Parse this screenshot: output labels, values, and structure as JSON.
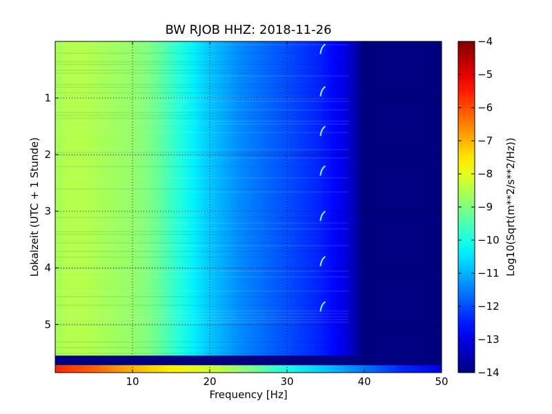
{
  "chart_data": {
    "type": "heatmap",
    "title": "BW RJOB HHZ: 2018-11-26",
    "xlabel": "Frequency [Hz]",
    "ylabel": "Lokalzeit (UTC + 1 Stunde)",
    "xlim": [
      0,
      50
    ],
    "ylim": [
      0,
      5.85
    ],
    "y_inverted": true,
    "x_ticks": [
      10,
      20,
      30,
      40,
      50
    ],
    "y_ticks": [
      1,
      2,
      3,
      4,
      5
    ],
    "grid": true,
    "colormap": "jet",
    "colorbar": {
      "label": "Log10(Sqrt(m**2/s**2/Hz))",
      "range": [
        -14,
        -4
      ],
      "ticks": [
        -14,
        -13,
        -12,
        -11,
        -10,
        -9,
        -8,
        -7,
        -6,
        -5,
        -4
      ]
    },
    "value_profile_by_frequency": {
      "frequency_hz": [
        0,
        2,
        4,
        6,
        8,
        10,
        12,
        14,
        16,
        18,
        20,
        22,
        24,
        26,
        28,
        30,
        32,
        34,
        36,
        37,
        38,
        39,
        40,
        41,
        45,
        50
      ],
      "log10_amplitude": [
        -8.6,
        -8.5,
        -8.5,
        -8.6,
        -8.7,
        -8.8,
        -9.0,
        -9.4,
        -9.9,
        -10.4,
        -10.8,
        -11.1,
        -11.4,
        -11.6,
        -11.8,
        -12.0,
        -12.2,
        -12.4,
        -12.7,
        -12.9,
        -13.2,
        -13.6,
        -14.0,
        -14.0,
        -14.0,
        -14.0
      ]
    },
    "gap_band": {
      "time_start": 5.55,
      "time_end": 5.72,
      "value": -14.0
    },
    "final_row_profile": {
      "time_start": 5.72,
      "time_end": 5.85,
      "frequency_hz": [
        0,
        5,
        10,
        15,
        20,
        25,
        30,
        35,
        40,
        45,
        50
      ],
      "log10_amplitude": [
        -5.6,
        -6.2,
        -7.0,
        -7.6,
        -8.2,
        -9.0,
        -10.0,
        -10.8,
        -11.6,
        -12.4,
        -13.0
      ]
    },
    "features": [
      {
        "label": "",
        "frequency_hz": 34.5,
        "times": [
          0.05,
          0.8,
          1.5,
          2.2,
          3.0,
          3.8,
          4.6
        ]
      }
    ]
  }
}
